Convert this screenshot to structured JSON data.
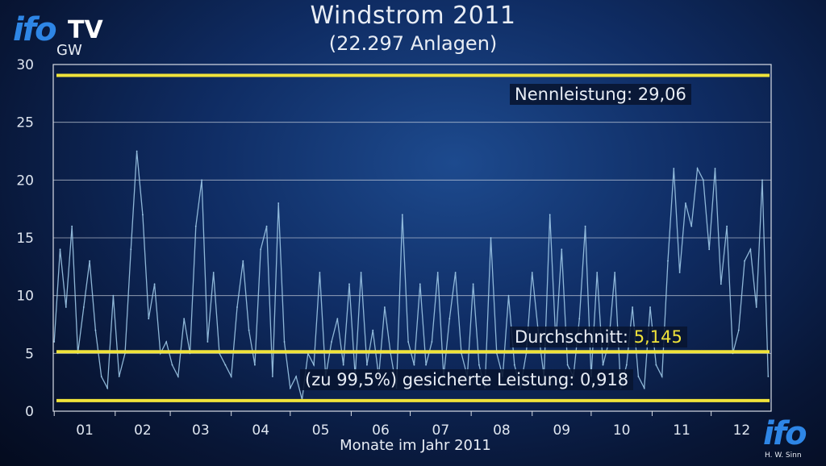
{
  "header": {
    "title": "Windstrom 2011",
    "subtitle": "(22.297 Anlagen)",
    "logo_text": "ifo",
    "logo_tv": "TV",
    "unit": "GW",
    "bottom_logo": "ifo",
    "author": "H. W. Sinn"
  },
  "annotations": {
    "nenn_label": "Nennleistung:",
    "nenn_value": "29,06",
    "avg_label": "Durchschnitt:",
    "avg_value": "5,145",
    "secured_label": "(zu 99,5%) gesicherte Leistung:",
    "secured_value": "0,918"
  },
  "colors": {
    "accent": "#f0e33a",
    "series": "#9cc7e6",
    "grid": "#d8dde6"
  },
  "chart_data": {
    "type": "line",
    "title": "Windstrom 2011",
    "subtitle": "(22.297 Anlagen)",
    "ylabel": "GW",
    "xlabel": "Monate im Jahr 2011",
    "ylim": [
      0,
      30
    ],
    "yticks": [
      0,
      5,
      10,
      15,
      20,
      25,
      30
    ],
    "x_tick_labels": [
      "01",
      "02",
      "03",
      "04",
      "05",
      "06",
      "07",
      "08",
      "09",
      "10",
      "11",
      "12"
    ],
    "grid": true,
    "reference_lines": [
      {
        "label": "Nennleistung",
        "value": 29.06
      },
      {
        "label": "Durchschnitt",
        "value": 5.145
      },
      {
        "label": "(zu 99,5%) gesicherte Leistung",
        "value": 0.918
      }
    ],
    "series": [
      {
        "day_of_year": [
          1,
          4,
          7,
          10,
          13,
          16,
          19,
          22,
          25,
          28,
          31,
          34,
          37,
          40,
          43,
          46,
          49,
          52,
          55,
          58,
          61,
          64,
          67,
          70,
          73,
          76,
          79,
          82,
          85,
          88,
          91,
          94,
          97,
          100,
          103,
          106,
          109,
          112,
          115,
          118,
          121,
          124,
          127,
          130,
          133,
          136,
          139,
          142,
          145,
          148,
          151,
          154,
          157,
          160,
          163,
          166,
          169,
          172,
          175,
          178,
          181,
          184,
          187,
          190,
          193,
          196,
          199,
          202,
          205,
          208,
          211,
          214,
          217,
          220,
          223,
          226,
          229,
          232,
          235,
          238,
          241,
          244,
          247,
          250,
          253,
          256,
          259,
          262,
          265,
          268,
          271,
          274,
          277,
          280,
          283,
          286,
          289,
          292,
          295,
          298,
          301,
          304,
          307,
          310,
          313,
          316,
          319,
          322,
          325,
          328,
          331,
          334,
          337,
          340,
          343,
          346,
          349,
          352,
          355,
          358,
          361,
          364
        ],
        "values": [
          6,
          14,
          9,
          16,
          5,
          9,
          13,
          7,
          3,
          2,
          10,
          3,
          5,
          14,
          22.5,
          17,
          8,
          11,
          5,
          6,
          4,
          3,
          8,
          5,
          16,
          20,
          6,
          12,
          5,
          4,
          3,
          9,
          13,
          7,
          4,
          14,
          16,
          3,
          18,
          6,
          2,
          3,
          1,
          5,
          4,
          12,
          3,
          6,
          8,
          4,
          11,
          3,
          12,
          4,
          7,
          3,
          9,
          5,
          2,
          17,
          6,
          4,
          11,
          4,
          6,
          12,
          3,
          8,
          12,
          5,
          3,
          11,
          4,
          2,
          15,
          5,
          3,
          10,
          4,
          2,
          5,
          12,
          7,
          3,
          17,
          6,
          14,
          4,
          3,
          8,
          16,
          3,
          12,
          4,
          6,
          12,
          2,
          4,
          9,
          3,
          2,
          9,
          4,
          3,
          13,
          21,
          12,
          18,
          16,
          21,
          20,
          14,
          21,
          11,
          16,
          5,
          7,
          13,
          14,
          9,
          20,
          3
        ]
      }
    ]
  },
  "labels": {
    "xlabel": "Monate im Jahr 2011"
  }
}
